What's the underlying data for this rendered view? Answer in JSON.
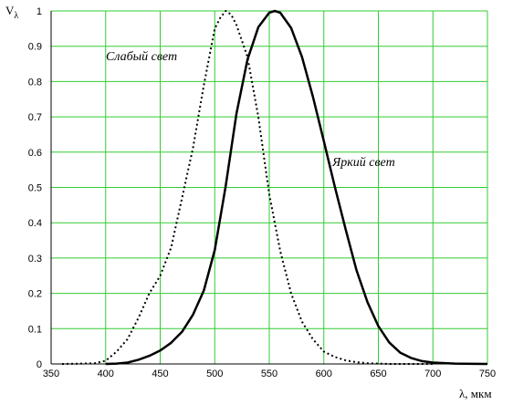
{
  "chart_data": {
    "type": "line",
    "title": "",
    "xlabel": "λ, мкм",
    "ylabel": "V",
    "ylabel_subscript": "λ",
    "xlim": [
      350,
      750
    ],
    "ylim": [
      0,
      1
    ],
    "x_ticks": [
      "350",
      "400",
      "450",
      "500",
      "550",
      "600",
      "650",
      "700",
      "750"
    ],
    "y_ticks": [
      "0",
      "0.1",
      "0.2",
      "0.3",
      "0.4",
      "0.5",
      "0.6",
      "0.7",
      "0.8",
      "0.9",
      "1"
    ],
    "grid": true,
    "grid_color": "#33cc33",
    "series": [
      {
        "name": "Слабый свет",
        "style": "dotted",
        "color": "#000000",
        "x": [
          360,
          380,
          390,
          400,
          410,
          420,
          430,
          440,
          450,
          460,
          470,
          480,
          490,
          500,
          505,
          510,
          515,
          520,
          530,
          540,
          550,
          560,
          570,
          580,
          590,
          600,
          610,
          620,
          630,
          640,
          650,
          660,
          670,
          680,
          690,
          700
        ],
        "y": [
          0.0,
          0.001,
          0.002,
          0.009,
          0.035,
          0.07,
          0.13,
          0.2,
          0.25,
          0.33,
          0.47,
          0.61,
          0.79,
          0.95,
          0.98,
          1.0,
          0.99,
          0.96,
          0.87,
          0.7,
          0.48,
          0.32,
          0.2,
          0.12,
          0.07,
          0.035,
          0.02,
          0.01,
          0.005,
          0.002,
          0.001,
          0.0,
          0.0,
          0.0,
          0.0,
          0.0
        ]
      },
      {
        "name": "Яркий свет",
        "style": "solid",
        "color": "#000000",
        "x": [
          400,
          410,
          420,
          430,
          440,
          450,
          460,
          470,
          480,
          490,
          500,
          510,
          520,
          530,
          540,
          550,
          555,
          560,
          570,
          580,
          590,
          600,
          610,
          620,
          630,
          640,
          650,
          660,
          670,
          680,
          690,
          700,
          720,
          750
        ],
        "y": [
          0.0,
          0.001,
          0.004,
          0.012,
          0.023,
          0.038,
          0.06,
          0.091,
          0.139,
          0.208,
          0.323,
          0.503,
          0.71,
          0.862,
          0.954,
          0.995,
          1.0,
          0.995,
          0.952,
          0.87,
          0.757,
          0.631,
          0.503,
          0.381,
          0.265,
          0.175,
          0.107,
          0.061,
          0.032,
          0.017,
          0.008,
          0.004,
          0.001,
          0.0
        ]
      }
    ]
  }
}
